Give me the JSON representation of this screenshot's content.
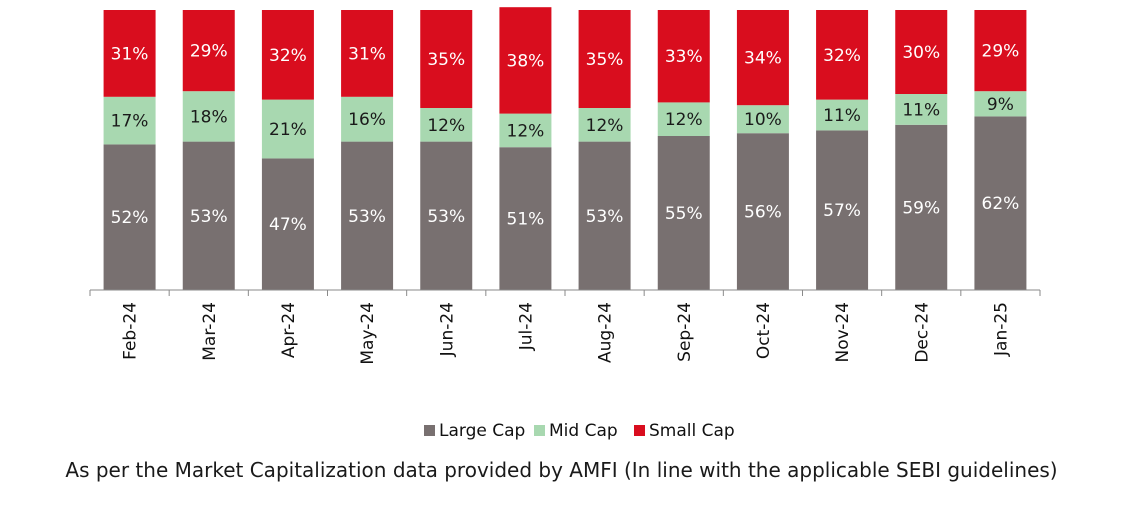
{
  "chart_data": {
    "type": "bar",
    "stacked": true,
    "percent": true,
    "categories": [
      "Feb-24",
      "Mar-24",
      "Apr-24",
      "May-24",
      "Jun-24",
      "Jul-24",
      "Aug-24",
      "Sep-24",
      "Oct-24",
      "Nov-24",
      "Dec-24",
      "Jan-25"
    ],
    "series": [
      {
        "name": "Large Cap",
        "color": "#787070",
        "values": [
          52,
          53,
          47,
          53,
          53,
          51,
          53,
          55,
          56,
          57,
          59,
          62
        ]
      },
      {
        "name": "Mid Cap",
        "color": "#a8d8b0",
        "values": [
          17,
          18,
          21,
          16,
          12,
          12,
          12,
          12,
          10,
          11,
          11,
          9
        ]
      },
      {
        "name": "Small Cap",
        "color": "#d90d1e",
        "values": [
          31,
          29,
          32,
          31,
          35,
          38,
          35,
          33,
          34,
          32,
          30,
          29
        ]
      }
    ],
    "ylim": [
      0,
      100
    ],
    "legend_position": "bottom",
    "grid": false
  },
  "footnote": "As per the Market Capitalization data provided by AMFI (In line with the applicable SEBI guidelines)"
}
